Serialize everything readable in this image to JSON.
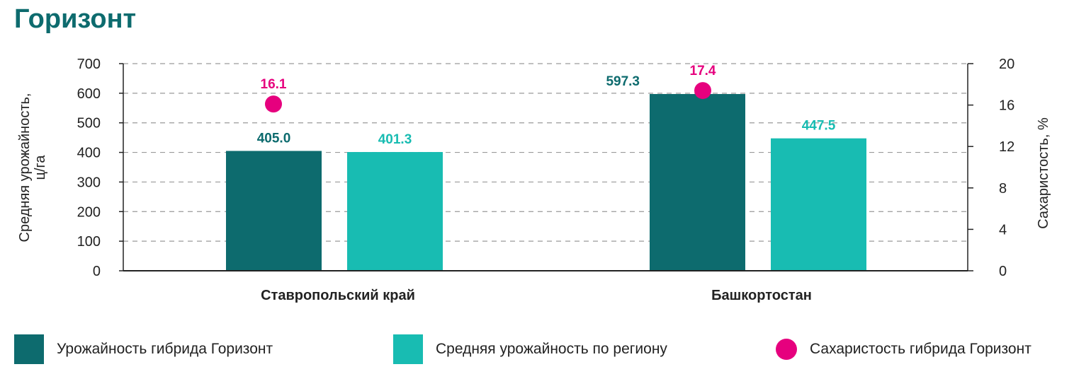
{
  "title": "Горизонт",
  "colors": {
    "hybrid": "#0d6b6e",
    "region": "#18bcb2",
    "sugar": "#e6007e",
    "axis": "#222222",
    "grid": "#9a9a9a",
    "title": "#0d6b6e"
  },
  "chart_data": {
    "type": "bar",
    "categories": [
      "Ставропольский край",
      "Башкортостан"
    ],
    "series": [
      {
        "name": "Урожайность гибрида Горизонт",
        "axis": "left",
        "values": [
          405.0,
          597.3
        ],
        "labels": [
          "405.0",
          "597.3"
        ]
      },
      {
        "name": "Средняя урожайность по региону",
        "axis": "left",
        "values": [
          401.3,
          447.5
        ],
        "labels": [
          "401.3",
          "447.5"
        ]
      },
      {
        "name": "Сахаристость гибрида Горизонт",
        "axis": "right",
        "type": "scatter",
        "values": [
          16.1,
          17.4
        ],
        "labels": [
          "16.1",
          "17.4"
        ]
      }
    ],
    "ylabel": "Средняя урожайность, ц/га",
    "ylabel_lines": [
      "Средняя урожайность,",
      "ц/га"
    ],
    "y2label": "Сахаристость, %",
    "ylim": [
      0,
      700
    ],
    "y2lim": [
      0,
      20
    ],
    "yticks": [
      "0",
      "100",
      "200",
      "300",
      "400",
      "500",
      "600",
      "700"
    ],
    "y2ticks": [
      "0",
      "4",
      "8",
      "12",
      "16",
      "20"
    ],
    "grid": true,
    "legend_position": "bottom"
  }
}
